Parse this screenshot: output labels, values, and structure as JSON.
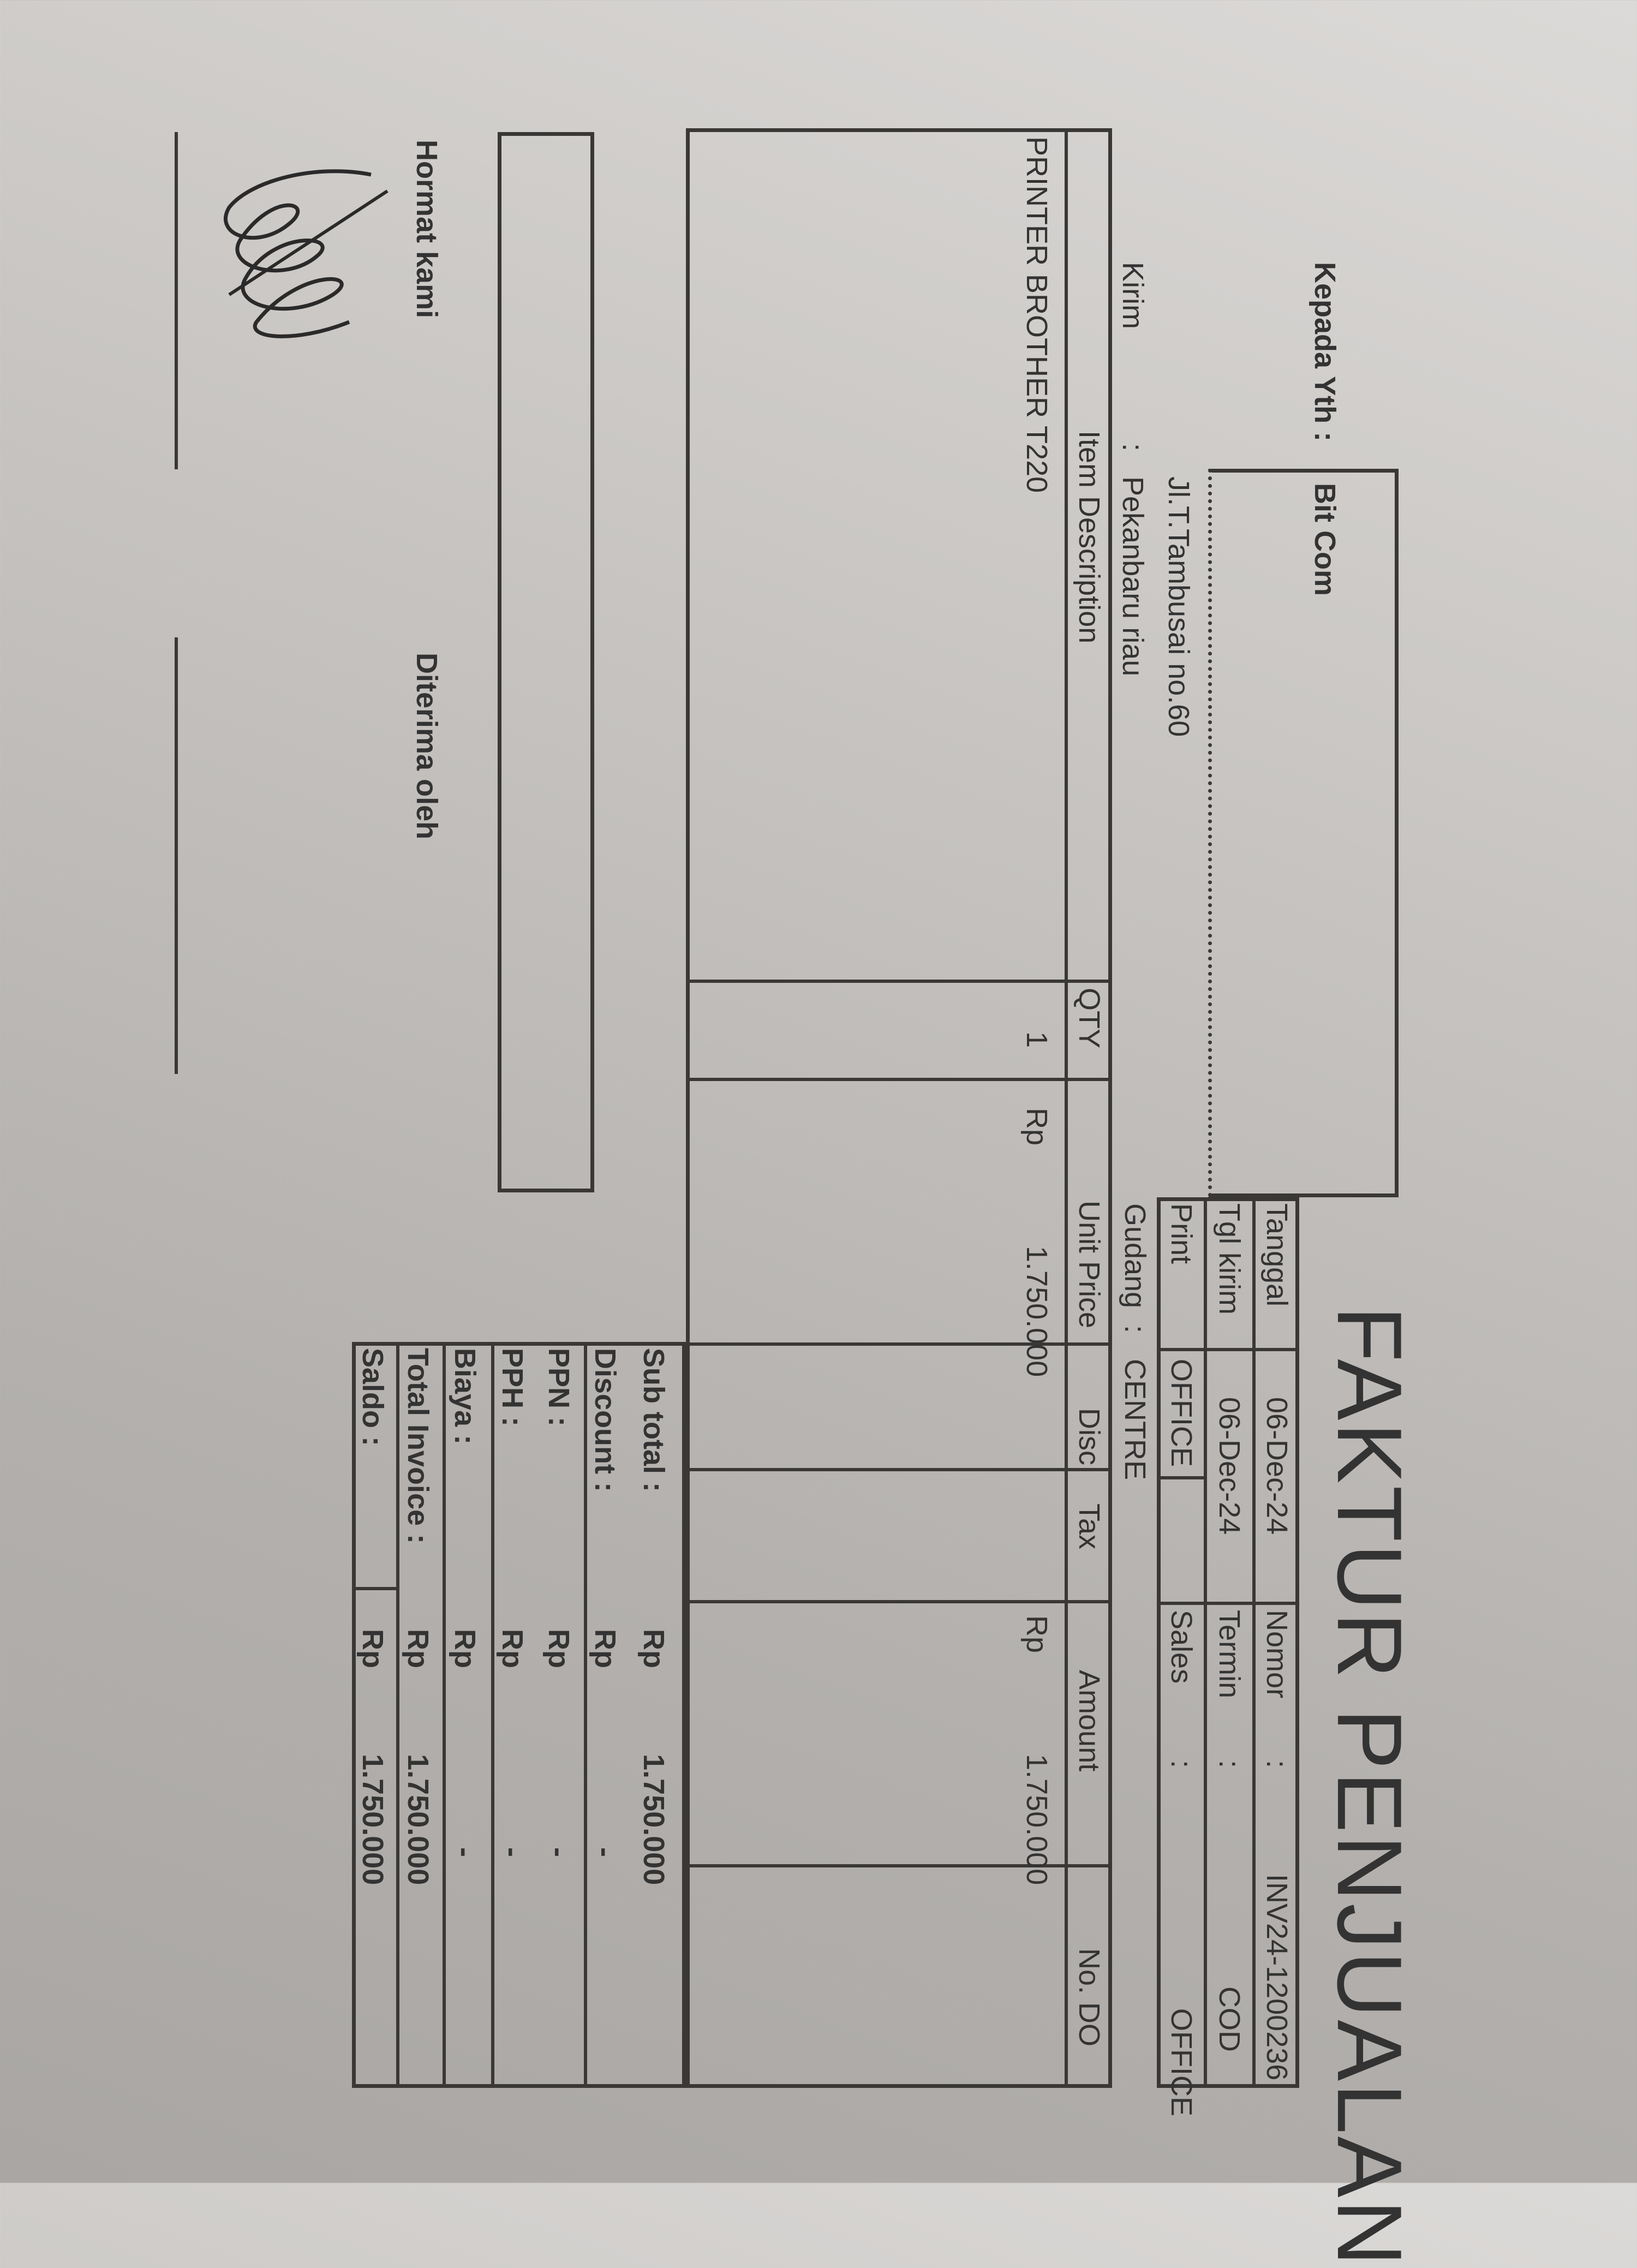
{
  "title": "FAKTUR PENJUALAN",
  "customer": {
    "label": "Kepada Yth :",
    "name": "Bit Com",
    "address": "Jl.T.Tambusai no.60",
    "ship_label": "Kirim",
    "ship_sep": ":",
    "ship_to": "Pekanbaru riau"
  },
  "header": {
    "tanggal_label": "Tanggal",
    "tanggal": "06-Dec-24",
    "tglkirim_label": "Tgl kirim",
    "tglkirim": "06-Dec-24",
    "print_label": "Print",
    "print": "OFFICE",
    "gudang_label": "Gudang",
    "gudang_sep": ":",
    "gudang": "CENTRE",
    "nomor_label": "Nomor",
    "nomor_sep": ":",
    "nomor": "INV24-1200236",
    "termin_label": "Termin",
    "termin_sep": ":",
    "termin": "COD",
    "sales_label": "Sales",
    "sales_sep": ":",
    "sales": "OFFICE"
  },
  "table": {
    "columns": [
      "Item Description",
      "QTY",
      "Unit Price",
      "Disc",
      "Tax",
      "Amount",
      "No. DO"
    ],
    "rows": [
      {
        "description": "PRINTER BROTHER T220",
        "qty": "1",
        "unit_currency": "Rp",
        "unit_price": "1.750.000",
        "amount_currency": "Rp",
        "amount": "1.750.000"
      }
    ]
  },
  "summary": [
    {
      "label": "Sub total :",
      "currency": "Rp",
      "value": "1.750.000"
    },
    {
      "label": "Discount :",
      "currency": "Rp",
      "value": "-"
    },
    {
      "label": "PPN  :",
      "currency": "Rp",
      "value": "-"
    },
    {
      "label": "PPH  :",
      "currency": "Rp",
      "value": "-"
    },
    {
      "label": "Biaya     :",
      "currency": "Rp",
      "value": "-"
    },
    {
      "label": "Total Invoice :",
      "currency": "Rp",
      "value": "1.750.000"
    },
    {
      "label": "Saldo   :",
      "currency": "Rp",
      "value": "1.750.000"
    }
  ],
  "footer": {
    "sender": "Hormat kami",
    "receiver": "Diterima oleh"
  },
  "colors": {
    "ink": "#333333",
    "paper": "#c7c4c1"
  }
}
